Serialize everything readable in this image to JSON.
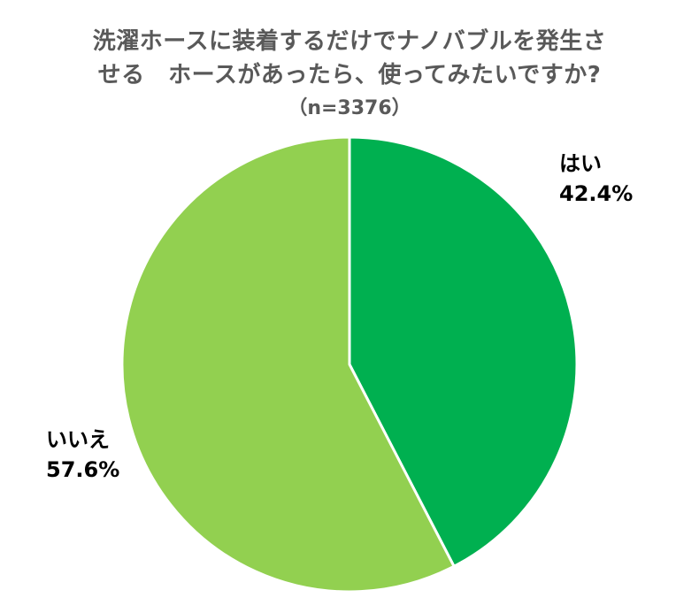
{
  "chart_data": {
    "type": "pie",
    "title_lines": [
      "洗濯ホースに装着するだけでナノバブルを発生さ",
      "せる　ホースがあったら、使ってみたいですか?"
    ],
    "subtitle": "（n=3376）",
    "slices": [
      {
        "label": "はい",
        "value": 42.4,
        "value_label": "42.4%",
        "color": "#00b050"
      },
      {
        "label": "いいえ",
        "value": 57.6,
        "value_label": "57.6%",
        "color": "#92d050"
      }
    ],
    "start": "12 o'clock",
    "direction": "clockwise",
    "slice_border_color": "#ffffff"
  }
}
